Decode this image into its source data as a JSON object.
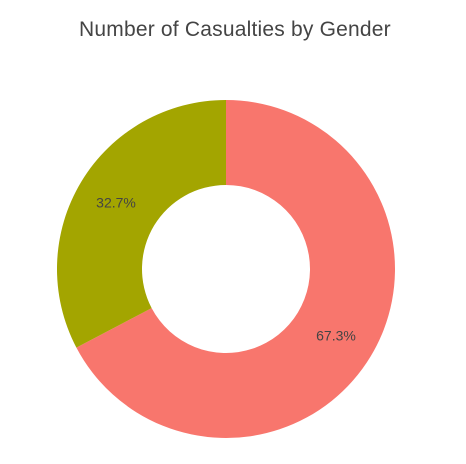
{
  "chart_data": {
    "type": "pie",
    "title": "Number of Casualties by Gender",
    "hole": true,
    "legend": "none",
    "slices": [
      {
        "label": "67.3%",
        "value": 67.3,
        "color": "#F8766D"
      },
      {
        "label": "32.7%",
        "value": 32.7,
        "color": "#A3A500"
      }
    ]
  }
}
